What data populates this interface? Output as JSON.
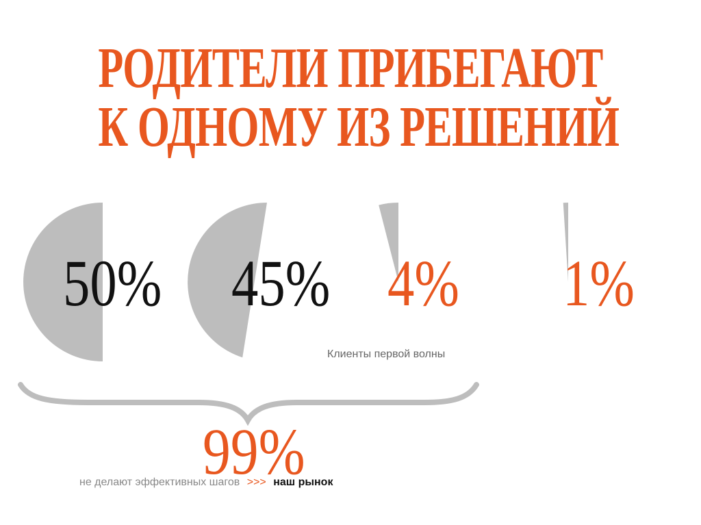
{
  "slide": {
    "title_line1": "РОДИТЕЛИ ПРИБЕГАЮТ",
    "title_line2": "К ОДНОМУ ИЗ РЕШЕНИЙ",
    "segments": [
      {
        "value": 50,
        "label": "50%"
      },
      {
        "value": 45,
        "label": "45%"
      },
      {
        "value": 4,
        "label": "4%"
      },
      {
        "value": 1,
        "label": "1%"
      }
    ],
    "first_wave_caption": "Клиенты первой волны",
    "total_label": "99%",
    "footnote_text": "не делают эффективных шагов",
    "footnote_arrows": ">>>",
    "footnote_market": "наш рынок"
  },
  "colors": {
    "accent": "#e8571f",
    "pie_gray": "#bdbdbd",
    "dark_text": "#111111",
    "caption_text": "#666666",
    "footnote_text": "#888888"
  }
}
